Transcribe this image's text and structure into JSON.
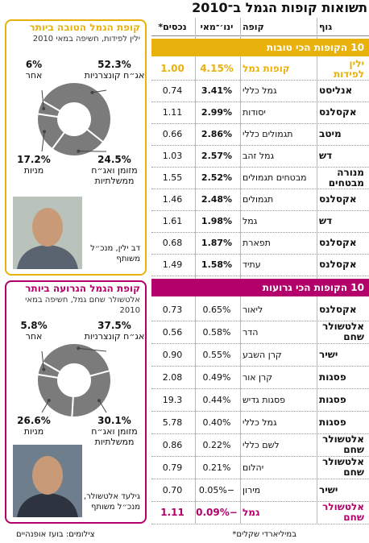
{
  "header": {
    "title": "תשואות קופות הגמל ב־2010"
  },
  "table": {
    "columns": [
      "גוף",
      "קופה",
      "ינו׳־מאי",
      "נכסים*"
    ],
    "sections": [
      {
        "title": "10 הקופות הכי טובות",
        "color": "#e8b10c",
        "highlight_row": 0,
        "bold_returns": true,
        "rows": [
          [
            "ילין לפידות",
            "קופות גמל",
            "4.15%",
            "1.00"
          ],
          [
            "אנליסט",
            "גמל כללי",
            "3.41%",
            "0.74"
          ],
          [
            "אקסלנס",
            "יסודות",
            "2.99%",
            "1.11"
          ],
          [
            "מיטב",
            "תגמולים כללי",
            "2.86%",
            "0.66"
          ],
          [
            "דש",
            "גמל זהב",
            "2.57%",
            "1.03"
          ],
          [
            "מנורה מבטחים",
            "מבטחים תגמולים",
            "2.52%",
            "1.55"
          ],
          [
            "אקסלנס",
            "תגמולים",
            "2.48%",
            "1.46"
          ],
          [
            "דש",
            "גמל",
            "1.98%",
            "1.61"
          ],
          [
            "אקסלנס",
            "תפארת",
            "1.87%",
            "0.68"
          ],
          [
            "אקסלנס",
            "עתיד",
            "1.58%",
            "1.49"
          ]
        ]
      },
      {
        "title": "10 הקופות הכי גרועות",
        "color": "#b3006b",
        "highlight_row": 9,
        "bold_returns": false,
        "rows": [
          [
            "אקסלנס",
            "ליאור",
            "0.65%",
            "0.73"
          ],
          [
            "אלטשולר שחם",
            "הדר",
            "0.58%",
            "0.56"
          ],
          [
            "ישיר",
            "קרן השבע",
            "0.55%",
            "0.90"
          ],
          [
            "פסגות",
            "קרן אור",
            "0.49%",
            "2.08"
          ],
          [
            "פסגות",
            "פסגות גדיש",
            "0.44%",
            "19.3"
          ],
          [
            "פסגות",
            "גמל כללי",
            "0.40%",
            "5.78"
          ],
          [
            "אלטשולר שחם",
            "לשם כללי",
            "0.22%",
            "0.86"
          ],
          [
            "אלטשולר שחם",
            "יהלום",
            "0.21%",
            "0.79"
          ],
          [
            "ישיר",
            "מירון",
            "−0.05%",
            "0.70"
          ],
          [
            "אלטשולר שחם",
            "גמל",
            "−0.09%",
            "1.11"
          ]
        ]
      }
    ]
  },
  "chart_data": [
    {
      "type": "pie",
      "title": "קופת הגמל הטובה ביותר",
      "subtitle": "ילין לפידות, חשיפה במאי 2010",
      "accent_color": "#e8b10c",
      "color": "#7b7b7b",
      "categories": [
        "אג״ח קונצרניות",
        "מזומן ואג״ח ממשלתיות",
        "מניות",
        "אחר"
      ],
      "values": [
        52.3,
        24.5,
        17.2,
        6
      ],
      "value_labels": [
        "52.3%",
        "24.5%",
        "17.2%",
        "6%"
      ],
      "photo_caption": "דב ילין, מנכ״ל משותף"
    },
    {
      "type": "pie",
      "title": "קופת הגמל הגרועה ביותר",
      "subtitle": "אלטשולר שחם גמל, חשיפה במאי 2010",
      "accent_color": "#b3006b",
      "color": "#7b7b7b",
      "categories": [
        "אג״ח קונצרניות",
        "מזומן ואג״ח ממשלתיות",
        "מניות",
        "אחר"
      ],
      "values": [
        37.5,
        30.1,
        26.6,
        5.8
      ],
      "value_labels": [
        "37.5%",
        "30.1%",
        "26.6%",
        "5.8%"
      ],
      "photo_caption": "גילעד אלטשולר, מנכ״ל משותף"
    }
  ],
  "footer": {
    "note": "במיליארדי שקלים*",
    "credit": "צילומים: בועז אופנהיים"
  }
}
